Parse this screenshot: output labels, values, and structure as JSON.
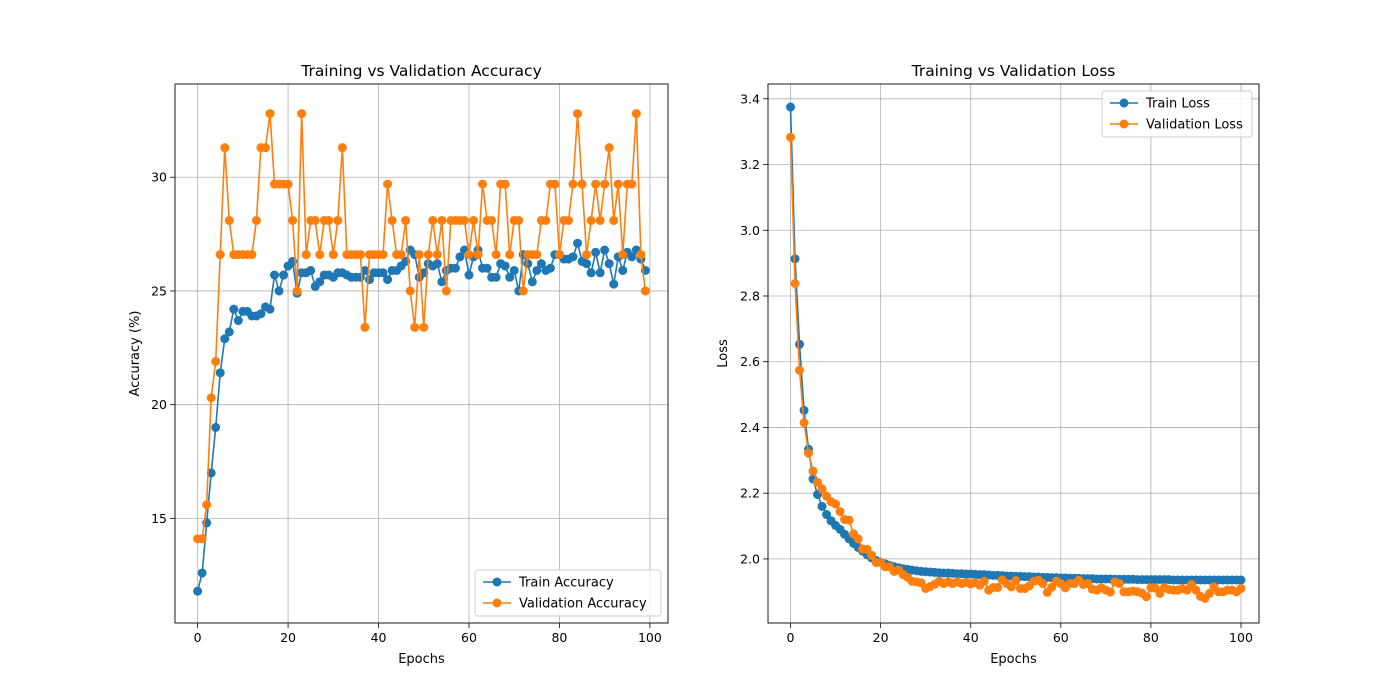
{
  "chart_data": [
    {
      "type": "line",
      "title": "Training vs Validation Accuracy",
      "xlabel": "Epochs",
      "ylabel": "Accuracy (%)",
      "xlim": [
        -5,
        104
      ],
      "ylim": [
        10.4,
        34.1
      ],
      "xticks": [
        0,
        20,
        40,
        60,
        80,
        100
      ],
      "yticks": [
        15,
        20,
        25,
        30
      ],
      "grid": true,
      "legend_position": "lower right",
      "x": [
        0,
        1,
        2,
        3,
        4,
        5,
        6,
        7,
        8,
        9,
        10,
        11,
        12,
        13,
        14,
        15,
        16,
        17,
        18,
        19,
        20,
        21,
        22,
        23,
        24,
        25,
        26,
        27,
        28,
        29,
        30,
        31,
        32,
        33,
        34,
        35,
        36,
        37,
        38,
        39,
        40,
        41,
        42,
        43,
        44,
        45,
        46,
        47,
        48,
        49,
        50,
        51,
        52,
        53,
        54,
        55,
        56,
        57,
        58,
        59,
        60,
        61,
        62,
        63,
        64,
        65,
        66,
        67,
        68,
        69,
        70,
        71,
        72,
        73,
        74,
        75,
        76,
        77,
        78,
        79,
        80,
        81,
        82,
        83,
        84,
        85,
        86,
        87,
        88,
        89,
        90,
        91,
        92,
        93,
        94,
        95,
        96,
        97,
        98,
        99
      ],
      "series": [
        {
          "name": "Train Accuracy",
          "color": "#1f77b4",
          "values": [
            11.8,
            12.6,
            14.8,
            17.0,
            19.0,
            21.4,
            22.9,
            23.2,
            24.2,
            23.7,
            24.1,
            24.1,
            23.9,
            23.9,
            24.0,
            24.3,
            24.2,
            25.7,
            25.0,
            25.7,
            26.1,
            26.3,
            24.9,
            25.8,
            25.8,
            25.9,
            25.2,
            25.4,
            25.7,
            25.7,
            25.6,
            25.8,
            25.8,
            25.7,
            25.6,
            25.6,
            25.6,
            25.9,
            25.5,
            25.8,
            25.8,
            25.8,
            25.5,
            25.9,
            25.9,
            26.1,
            26.3,
            26.8,
            26.6,
            25.6,
            25.8,
            26.2,
            26.1,
            26.2,
            25.4,
            25.9,
            26.0,
            26.0,
            26.5,
            26.8,
            25.7,
            26.5,
            26.8,
            26.0,
            26.0,
            25.6,
            25.6,
            26.2,
            26.1,
            25.6,
            25.9,
            25.0,
            26.6,
            26.2,
            25.4,
            25.9,
            26.2,
            25.9,
            26.0,
            26.6,
            26.6,
            26.4,
            26.4,
            26.5,
            27.1,
            26.3,
            26.2,
            25.8,
            26.7,
            25.8,
            26.8,
            26.2,
            25.3,
            26.5,
            25.9,
            26.7,
            26.5,
            26.8,
            26.4,
            25.9
          ]
        },
        {
          "name": "Validation Accuracy",
          "color": "#ff7f0e",
          "values": [
            14.1,
            14.1,
            15.6,
            20.3,
            21.9,
            26.6,
            31.3,
            28.1,
            26.6,
            26.6,
            26.6,
            26.6,
            26.6,
            28.1,
            31.3,
            31.3,
            32.8,
            29.7,
            29.7,
            29.7,
            29.7,
            28.1,
            25.0,
            32.8,
            26.6,
            28.1,
            28.1,
            26.6,
            28.1,
            28.1,
            26.6,
            28.1,
            31.3,
            26.6,
            26.6,
            26.6,
            26.6,
            23.4,
            26.6,
            26.6,
            26.6,
            26.6,
            29.7,
            28.1,
            26.6,
            26.6,
            28.1,
            25.0,
            23.4,
            26.6,
            23.4,
            26.6,
            28.1,
            26.6,
            28.1,
            25.0,
            28.1,
            28.1,
            28.1,
            28.1,
            26.6,
            28.1,
            26.6,
            29.7,
            28.1,
            28.1,
            26.6,
            29.7,
            29.7,
            26.6,
            28.1,
            28.1,
            25.0,
            26.6,
            26.6,
            26.6,
            28.1,
            28.1,
            29.7,
            29.7,
            26.6,
            28.1,
            28.1,
            29.7,
            32.8,
            29.7,
            26.6,
            28.1,
            29.7,
            28.1,
            29.7,
            31.3,
            28.1,
            29.7,
            26.6,
            29.7,
            29.7,
            32.8,
            26.6,
            25.0
          ]
        }
      ]
    },
    {
      "type": "line",
      "title": "Training vs Validation Loss",
      "xlabel": "Epochs",
      "ylabel": "Loss",
      "xlim": [
        -5,
        104
      ],
      "ylim": [
        1.805,
        3.445
      ],
      "xticks": [
        0,
        20,
        40,
        60,
        80,
        100
      ],
      "yticks": [
        2.0,
        2.2,
        2.4,
        2.6,
        2.8,
        3.0,
        3.2,
        3.4
      ],
      "ytick_labels": [
        "2.0",
        "2.2",
        "2.4",
        "2.6",
        "2.8",
        "3.0",
        "3.2",
        "3.4"
      ],
      "grid": true,
      "legend_position": "upper right",
      "x": [
        0,
        1,
        2,
        3,
        4,
        5,
        6,
        7,
        8,
        9,
        10,
        11,
        12,
        13,
        14,
        15,
        16,
        17,
        18,
        19,
        20,
        21,
        22,
        23,
        24,
        25,
        26,
        27,
        28,
        29,
        30,
        31,
        32,
        33,
        34,
        35,
        36,
        37,
        38,
        39,
        40,
        41,
        42,
        43,
        44,
        45,
        46,
        47,
        48,
        49,
        50,
        51,
        52,
        53,
        54,
        55,
        56,
        57,
        58,
        59,
        60,
        61,
        62,
        63,
        64,
        65,
        66,
        67,
        68,
        69,
        70,
        71,
        72,
        73,
        74,
        75,
        76,
        77,
        78,
        79,
        80,
        81,
        82,
        83,
        84,
        85,
        86,
        87,
        88,
        89,
        90,
        91,
        92,
        93,
        94,
        95,
        96,
        97,
        98,
        99,
        100
      ],
      "series": [
        {
          "name": "Train Loss",
          "color": "#1f77b4",
          "values": [
            3.375,
            2.913,
            2.653,
            2.452,
            2.334,
            2.243,
            2.196,
            2.16,
            2.135,
            2.116,
            2.102,
            2.09,
            2.075,
            2.061,
            2.047,
            2.035,
            2.024,
            2.013,
            2.003,
            1.995,
            1.99,
            1.985,
            1.98,
            1.976,
            1.973,
            1.97,
            1.968,
            1.966,
            1.964,
            1.962,
            1.961,
            1.96,
            1.959,
            1.958,
            1.957,
            1.957,
            1.956,
            1.955,
            1.955,
            1.954,
            1.954,
            1.953,
            1.952,
            1.952,
            1.951,
            1.95,
            1.95,
            1.949,
            1.948,
            1.948,
            1.947,
            1.947,
            1.946,
            1.946,
            1.945,
            1.945,
            1.944,
            1.944,
            1.943,
            1.943,
            1.942,
            1.942,
            1.941,
            1.941,
            1.941,
            1.94,
            1.94,
            1.94,
            1.939,
            1.939,
            1.939,
            1.939,
            1.938,
            1.938,
            1.938,
            1.938,
            1.938,
            1.937,
            1.937,
            1.937,
            1.937,
            1.937,
            1.937,
            1.937,
            1.937,
            1.936,
            1.936,
            1.936,
            1.936,
            1.936,
            1.936,
            1.936,
            1.936,
            1.936,
            1.936,
            1.936,
            1.936,
            1.936,
            1.936,
            1.936,
            1.936
          ]
        },
        {
          "name": "Validation Loss",
          "color": "#ff7f0e",
          "values": [
            3.283,
            2.838,
            2.574,
            2.414,
            2.322,
            2.267,
            2.233,
            2.213,
            2.191,
            2.174,
            2.167,
            2.144,
            2.12,
            2.118,
            2.076,
            2.061,
            2.03,
            2.029,
            2.011,
            1.989,
            1.989,
            1.976,
            1.976,
            1.962,
            1.966,
            1.952,
            1.944,
            1.932,
            1.93,
            1.927,
            1.91,
            1.916,
            1.923,
            1.932,
            1.925,
            1.93,
            1.925,
            1.93,
            1.925,
            1.929,
            1.924,
            1.928,
            1.92,
            1.932,
            1.905,
            1.913,
            1.913,
            1.936,
            1.925,
            1.915,
            1.934,
            1.91,
            1.91,
            1.918,
            1.932,
            1.935,
            1.925,
            1.898,
            1.914,
            1.932,
            1.925,
            1.912,
            1.925,
            1.925,
            1.935,
            1.922,
            1.925,
            1.908,
            1.905,
            1.912,
            1.905,
            1.899,
            1.93,
            1.925,
            1.9,
            1.9,
            1.902,
            1.9,
            1.896,
            1.885,
            1.912,
            1.911,
            1.895,
            1.912,
            1.907,
            1.905,
            1.905,
            1.91,
            1.905,
            1.922,
            1.905,
            1.886,
            1.88,
            1.895,
            1.915,
            1.9,
            1.9,
            1.905,
            1.905,
            1.9,
            1.91
          ]
        }
      ]
    }
  ]
}
